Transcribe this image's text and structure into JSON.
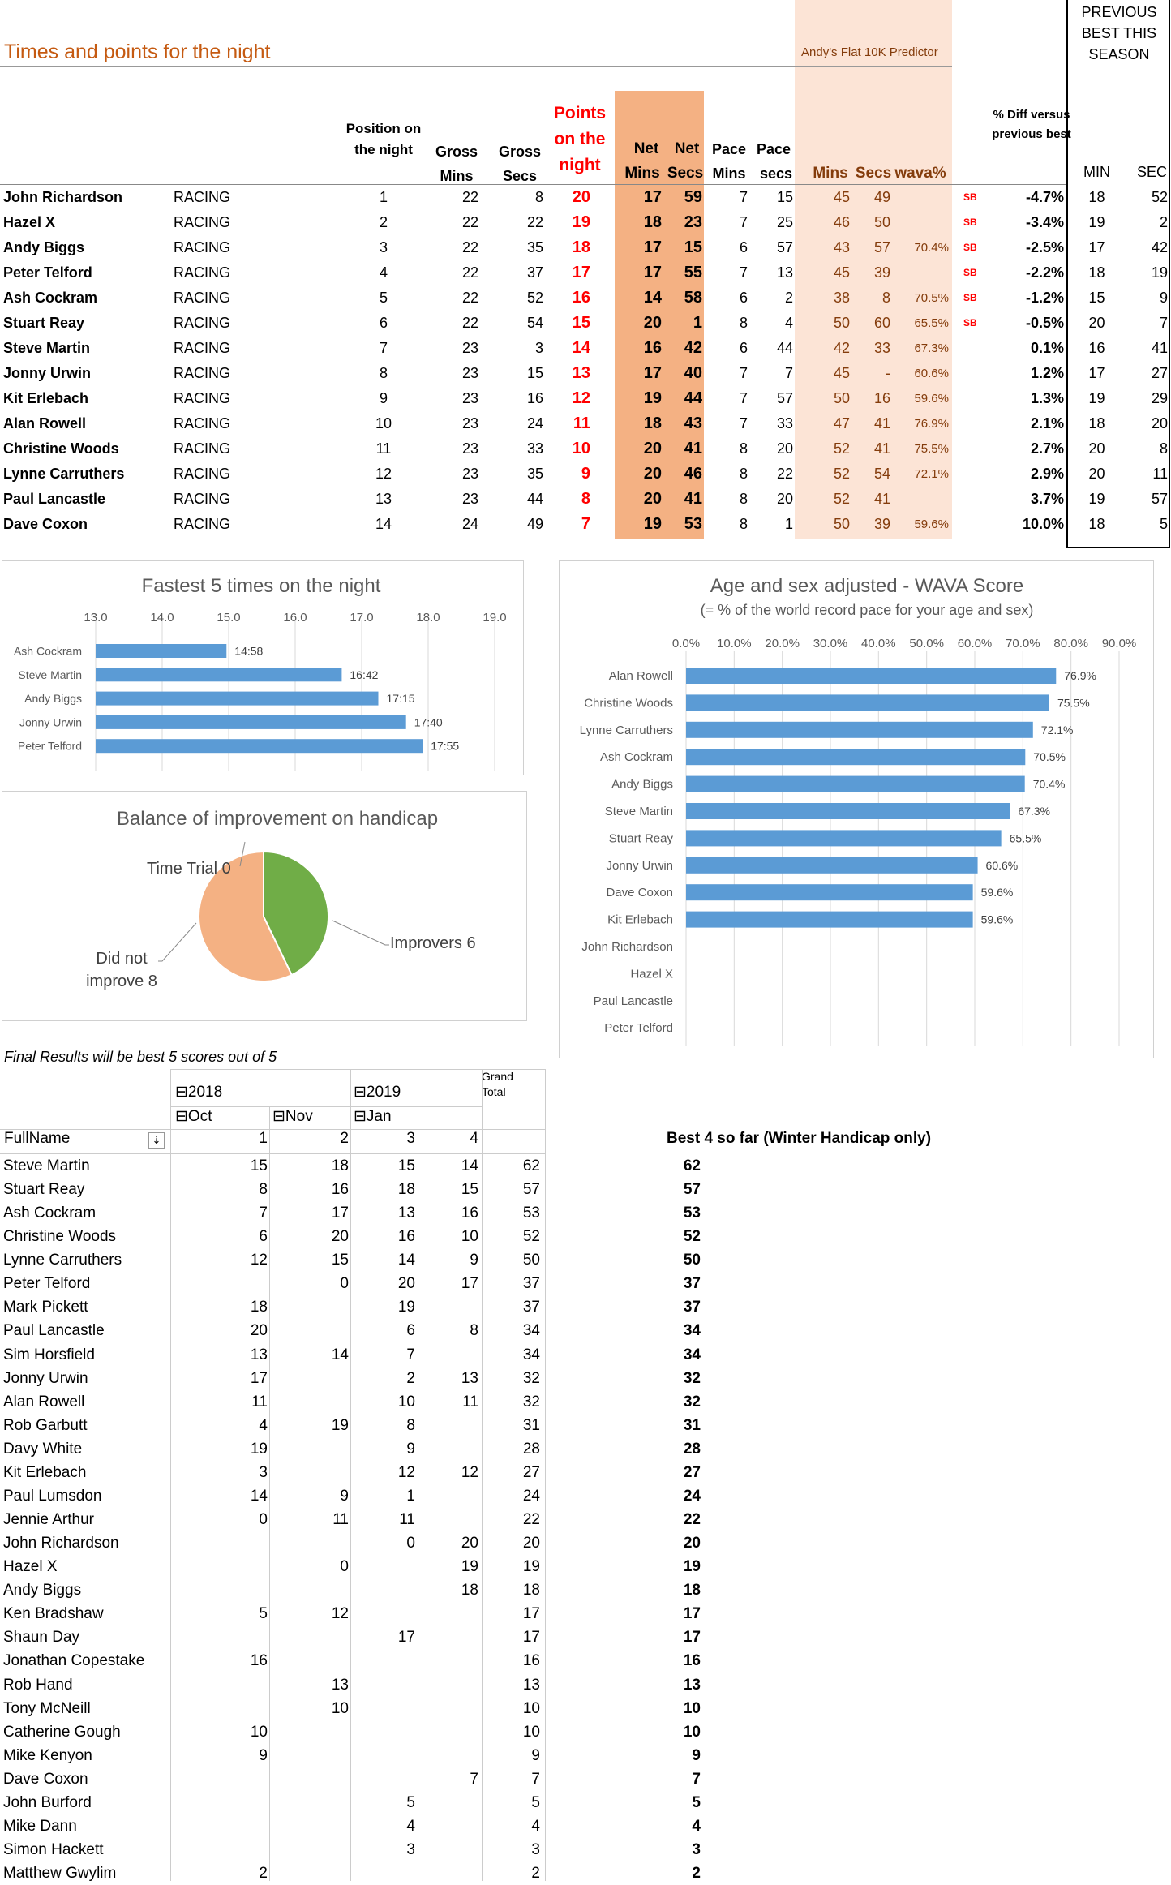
{
  "title": "Times and points for the night",
  "predictor_label": "Andy's Flat 10K Predictor",
  "prev_best_label": "PREVIOUS BEST THIS SEASON",
  "headers": {
    "position": "Position on the night",
    "gross_mins": "Gross Mins",
    "gross_secs": "Gross Secs",
    "points": "Points on the night",
    "net": "Net",
    "net_mins": "Mins",
    "net_secs": "Secs",
    "pace": "Pace",
    "pace_mins": "Mins",
    "pace_secs": "secs",
    "pred_mins": "Mins",
    "pred_secs": "Secs",
    "wava": "wava%",
    "diff": "% Diff versus previous best",
    "min": "MIN",
    "sec": "SEC"
  },
  "runners": [
    {
      "name": "John Richardson",
      "status": "RACING",
      "pos": "1",
      "gm": "22",
      "gs": "8",
      "pts": "20",
      "nm": "17",
      "ns": "59",
      "pm": "7",
      "ps": "15",
      "fm": "45",
      "fs": "49",
      "wava": "",
      "sb": "SB",
      "diff": "-4.7%",
      "bm": "18",
      "bs": "52"
    },
    {
      "name": "Hazel X",
      "status": "RACING",
      "pos": "2",
      "gm": "22",
      "gs": "22",
      "pts": "19",
      "nm": "18",
      "ns": "23",
      "pm": "7",
      "ps": "25",
      "fm": "46",
      "fs": "50",
      "wava": "",
      "sb": "SB",
      "diff": "-3.4%",
      "bm": "19",
      "bs": "2"
    },
    {
      "name": "Andy Biggs",
      "status": "RACING",
      "pos": "3",
      "gm": "22",
      "gs": "35",
      "pts": "18",
      "nm": "17",
      "ns": "15",
      "pm": "6",
      "ps": "57",
      "fm": "43",
      "fs": "57",
      "wava": "70.4%",
      "sb": "SB",
      "diff": "-2.5%",
      "bm": "17",
      "bs": "42"
    },
    {
      "name": "Peter Telford",
      "status": "RACING",
      "pos": "4",
      "gm": "22",
      "gs": "37",
      "pts": "17",
      "nm": "17",
      "ns": "55",
      "pm": "7",
      "ps": "13",
      "fm": "45",
      "fs": "39",
      "wava": "",
      "sb": "SB",
      "diff": "-2.2%",
      "bm": "18",
      "bs": "19"
    },
    {
      "name": "Ash Cockram",
      "status": "RACING",
      "pos": "5",
      "gm": "22",
      "gs": "52",
      "pts": "16",
      "nm": "14",
      "ns": "58",
      "pm": "6",
      "ps": "2",
      "fm": "38",
      "fs": "8",
      "wava": "70.5%",
      "sb": "SB",
      "diff": "-1.2%",
      "bm": "15",
      "bs": "9"
    },
    {
      "name": "Stuart Reay",
      "status": "RACING",
      "pos": "6",
      "gm": "22",
      "gs": "54",
      "pts": "15",
      "nm": "20",
      "ns": "1",
      "pm": "8",
      "ps": "4",
      "fm": "50",
      "fs": "60",
      "wava": "65.5%",
      "sb": "SB",
      "diff": "-0.5%",
      "bm": "20",
      "bs": "7"
    },
    {
      "name": "Steve Martin",
      "status": "RACING",
      "pos": "7",
      "gm": "23",
      "gs": "3",
      "pts": "14",
      "nm": "16",
      "ns": "42",
      "pm": "6",
      "ps": "44",
      "fm": "42",
      "fs": "33",
      "wava": "67.3%",
      "sb": "",
      "diff": "0.1%",
      "bm": "16",
      "bs": "41"
    },
    {
      "name": "Jonny Urwin",
      "status": "RACING",
      "pos": "8",
      "gm": "23",
      "gs": "15",
      "pts": "13",
      "nm": "17",
      "ns": "40",
      "pm": "7",
      "ps": "7",
      "fm": "45",
      "fs": "-",
      "wava": "60.6%",
      "sb": "",
      "diff": "1.2%",
      "bm": "17",
      "bs": "27"
    },
    {
      "name": "Kit Erlebach",
      "status": "RACING",
      "pos": "9",
      "gm": "23",
      "gs": "16",
      "pts": "12",
      "nm": "19",
      "ns": "44",
      "pm": "7",
      "ps": "57",
      "fm": "50",
      "fs": "16",
      "wava": "59.6%",
      "sb": "",
      "diff": "1.3%",
      "bm": "19",
      "bs": "29"
    },
    {
      "name": "Alan Rowell",
      "status": "RACING",
      "pos": "10",
      "gm": "23",
      "gs": "24",
      "pts": "11",
      "nm": "18",
      "ns": "43",
      "pm": "7",
      "ps": "33",
      "fm": "47",
      "fs": "41",
      "wava": "76.9%",
      "sb": "",
      "diff": "2.1%",
      "bm": "18",
      "bs": "20"
    },
    {
      "name": "Christine Woods",
      "status": "RACING",
      "pos": "11",
      "gm": "23",
      "gs": "33",
      "pts": "10",
      "nm": "20",
      "ns": "41",
      "pm": "8",
      "ps": "20",
      "fm": "52",
      "fs": "41",
      "wava": "75.5%",
      "sb": "",
      "diff": "2.7%",
      "bm": "20",
      "bs": "8"
    },
    {
      "name": "Lynne Carruthers",
      "status": "RACING",
      "pos": "12",
      "gm": "23",
      "gs": "35",
      "pts": "9",
      "nm": "20",
      "ns": "46",
      "pm": "8",
      "ps": "22",
      "fm": "52",
      "fs": "54",
      "wava": "72.1%",
      "sb": "",
      "diff": "2.9%",
      "bm": "20",
      "bs": "11"
    },
    {
      "name": "Paul Lancastle",
      "status": "RACING",
      "pos": "13",
      "gm": "23",
      "gs": "44",
      "pts": "8",
      "nm": "20",
      "ns": "41",
      "pm": "8",
      "ps": "20",
      "fm": "52",
      "fs": "41",
      "wava": "",
      "sb": "",
      "diff": "3.7%",
      "bm": "19",
      "bs": "57"
    },
    {
      "name": "Dave Coxon",
      "status": "RACING",
      "pos": "14",
      "gm": "24",
      "gs": "49",
      "pts": "7",
      "nm": "19",
      "ns": "53",
      "pm": "8",
      "ps": "1",
      "fm": "50",
      "fs": "39",
      "wava": "59.6%",
      "sb": "",
      "diff": "10.0%",
      "bm": "18",
      "bs": "5"
    }
  ],
  "chart_data": [
    {
      "type": "bar",
      "title": "Fastest 5 times on the night",
      "orientation": "horizontal",
      "categories": [
        "Ash Cockram",
        "Steve Martin",
        "Andy Biggs",
        "Jonny Urwin",
        "Peter Telford"
      ],
      "values": [
        14.967,
        16.7,
        17.25,
        17.667,
        17.917
      ],
      "labels": [
        "14:58",
        "16:42",
        "17:15",
        "17:40",
        "17:55"
      ],
      "xlim": [
        13,
        19
      ],
      "ticks": [
        "13.0",
        "14.0",
        "15.0",
        "16.0",
        "17.0",
        "18.0",
        "19.0"
      ],
      "color": "#5B9BD5"
    },
    {
      "type": "bar",
      "title": "Age and sex adjusted - WAVA Score",
      "subtitle": "(= % of the world record pace for your age and sex)",
      "orientation": "horizontal",
      "categories": [
        "Alan Rowell",
        "Christine Woods",
        "Lynne Carruthers",
        "Ash Cockram",
        "Andy Biggs",
        "Steve Martin",
        "Stuart Reay",
        "Jonny Urwin",
        "Dave Coxon",
        "Kit Erlebach",
        "John Richardson",
        "Hazel X",
        "Paul Lancastle",
        "Peter Telford"
      ],
      "values": [
        76.9,
        75.5,
        72.1,
        70.5,
        70.4,
        67.3,
        65.5,
        60.6,
        59.6,
        59.6,
        null,
        null,
        null,
        null
      ],
      "labels": [
        "76.9%",
        "75.5%",
        "72.1%",
        "70.5%",
        "70.4%",
        "67.3%",
        "65.5%",
        "60.6%",
        "59.6%",
        "59.6%",
        "",
        "",
        "",
        ""
      ],
      "xlim": [
        0,
        90
      ],
      "ticks": [
        "0.0%",
        "10.0%",
        "20.0%",
        "30.0%",
        "40.0%",
        "50.0%",
        "60.0%",
        "70.0%",
        "80.0%",
        "90.0%"
      ],
      "color": "#5B9BD5"
    },
    {
      "type": "pie",
      "title": "Balance of improvement on handicap",
      "categories": [
        "Time Trial",
        "Improvers",
        "Did not improve"
      ],
      "values": [
        0,
        6,
        8
      ],
      "labels": [
        "Time Trial 0",
        "Improvers 6",
        "Did not improve 8"
      ],
      "colors": [
        "#5B9BD5",
        "#70AD47",
        "#F4B183"
      ]
    }
  ],
  "pivot": {
    "note": "Final Results will be best 5 scores out of 5",
    "grand_total_label": "Grand Total",
    "year_2018": "2018",
    "year_2019": "2019",
    "month_oct": "Oct",
    "month_nov": "Nov",
    "month_jan": "Jan",
    "fullname_label": "FullName",
    "cols": [
      "1",
      "2",
      "3",
      "4"
    ],
    "best_label": "Best 4 so far (Winter Handicap only)",
    "rows": [
      {
        "name": "Steve Martin",
        "c1": "15",
        "c2": "18",
        "c3": "15",
        "c4": "14",
        "total": "62",
        "best": "62"
      },
      {
        "name": "Stuart Reay",
        "c1": "8",
        "c2": "16",
        "c3": "18",
        "c4": "15",
        "total": "57",
        "best": "57"
      },
      {
        "name": "Ash Cockram",
        "c1": "7",
        "c2": "17",
        "c3": "13",
        "c4": "16",
        "total": "53",
        "best": "53"
      },
      {
        "name": "Christine Woods",
        "c1": "6",
        "c2": "20",
        "c3": "16",
        "c4": "10",
        "total": "52",
        "best": "52"
      },
      {
        "name": "Lynne Carruthers",
        "c1": "12",
        "c2": "15",
        "c3": "14",
        "c4": "9",
        "total": "50",
        "best": "50"
      },
      {
        "name": "Peter Telford",
        "c1": "",
        "c2": "0",
        "c3": "20",
        "c4": "17",
        "total": "37",
        "best": "37"
      },
      {
        "name": "Mark Pickett",
        "c1": "18",
        "c2": "",
        "c3": "19",
        "c4": "",
        "total": "37",
        "best": "37"
      },
      {
        "name": "Paul Lancastle",
        "c1": "20",
        "c2": "",
        "c3": "6",
        "c4": "8",
        "total": "34",
        "best": "34"
      },
      {
        "name": "Sim Horsfield",
        "c1": "13",
        "c2": "14",
        "c3": "7",
        "c4": "",
        "total": "34",
        "best": "34"
      },
      {
        "name": "Jonny Urwin",
        "c1": "17",
        "c2": "",
        "c3": "2",
        "c4": "13",
        "total": "32",
        "best": "32"
      },
      {
        "name": "Alan Rowell",
        "c1": "11",
        "c2": "",
        "c3": "10",
        "c4": "11",
        "total": "32",
        "best": "32"
      },
      {
        "name": "Rob Garbutt",
        "c1": "4",
        "c2": "19",
        "c3": "8",
        "c4": "",
        "total": "31",
        "best": "31"
      },
      {
        "name": "Davy White",
        "c1": "19",
        "c2": "",
        "c3": "9",
        "c4": "",
        "total": "28",
        "best": "28"
      },
      {
        "name": "Kit Erlebach",
        "c1": "3",
        "c2": "",
        "c3": "12",
        "c4": "12",
        "total": "27",
        "best": "27"
      },
      {
        "name": "Paul Lumsdon",
        "c1": "14",
        "c2": "9",
        "c3": "1",
        "c4": "",
        "total": "24",
        "best": "24"
      },
      {
        "name": "Jennie Arthur",
        "c1": "0",
        "c2": "11",
        "c3": "11",
        "c4": "",
        "total": "22",
        "best": "22"
      },
      {
        "name": "John Richardson",
        "c1": "",
        "c2": "",
        "c3": "0",
        "c4": "20",
        "total": "20",
        "best": "20"
      },
      {
        "name": "Hazel X",
        "c1": "",
        "c2": "0",
        "c3": "",
        "c4": "19",
        "total": "19",
        "best": "19"
      },
      {
        "name": "Andy Biggs",
        "c1": "",
        "c2": "",
        "c3": "",
        "c4": "18",
        "total": "18",
        "best": "18"
      },
      {
        "name": "Ken Bradshaw",
        "c1": "5",
        "c2": "12",
        "c3": "",
        "c4": "",
        "total": "17",
        "best": "17"
      },
      {
        "name": "Shaun Day",
        "c1": "",
        "c2": "",
        "c3": "17",
        "c4": "",
        "total": "17",
        "best": "17"
      },
      {
        "name": "Jonathan Copestake",
        "c1": "16",
        "c2": "",
        "c3": "",
        "c4": "",
        "total": "16",
        "best": "16"
      },
      {
        "name": "Rob Hand",
        "c1": "",
        "c2": "13",
        "c3": "",
        "c4": "",
        "total": "13",
        "best": "13"
      },
      {
        "name": "Tony McNeill",
        "c1": "",
        "c2": "10",
        "c3": "",
        "c4": "",
        "total": "10",
        "best": "10"
      },
      {
        "name": "Catherine Gough",
        "c1": "10",
        "c2": "",
        "c3": "",
        "c4": "",
        "total": "10",
        "best": "10"
      },
      {
        "name": "Mike Kenyon",
        "c1": "9",
        "c2": "",
        "c3": "",
        "c4": "",
        "total": "9",
        "best": "9"
      },
      {
        "name": "Dave Coxon",
        "c1": "",
        "c2": "",
        "c3": "",
        "c4": "7",
        "total": "7",
        "best": "7"
      },
      {
        "name": "John Burford",
        "c1": "",
        "c2": "",
        "c3": "5",
        "c4": "",
        "total": "5",
        "best": "5"
      },
      {
        "name": "Mike Dann",
        "c1": "",
        "c2": "",
        "c3": "4",
        "c4": "",
        "total": "4",
        "best": "4"
      },
      {
        "name": "Simon Hackett",
        "c1": "",
        "c2": "",
        "c3": "3",
        "c4": "",
        "total": "3",
        "best": "3"
      },
      {
        "name": "Matthew Gwylim",
        "c1": "2",
        "c2": "",
        "c3": "",
        "c4": "",
        "total": "2",
        "best": "2"
      }
    ]
  },
  "colors": {
    "title_orange": "#C55A11",
    "points_red": "#FF0000",
    "net_band": "#F4B183",
    "predictor_band": "#FCE4D6",
    "predictor_text": "#843C0C",
    "bar_blue": "#5B9BD5",
    "pie_green": "#70AD47",
    "pie_peach": "#F4B183"
  }
}
